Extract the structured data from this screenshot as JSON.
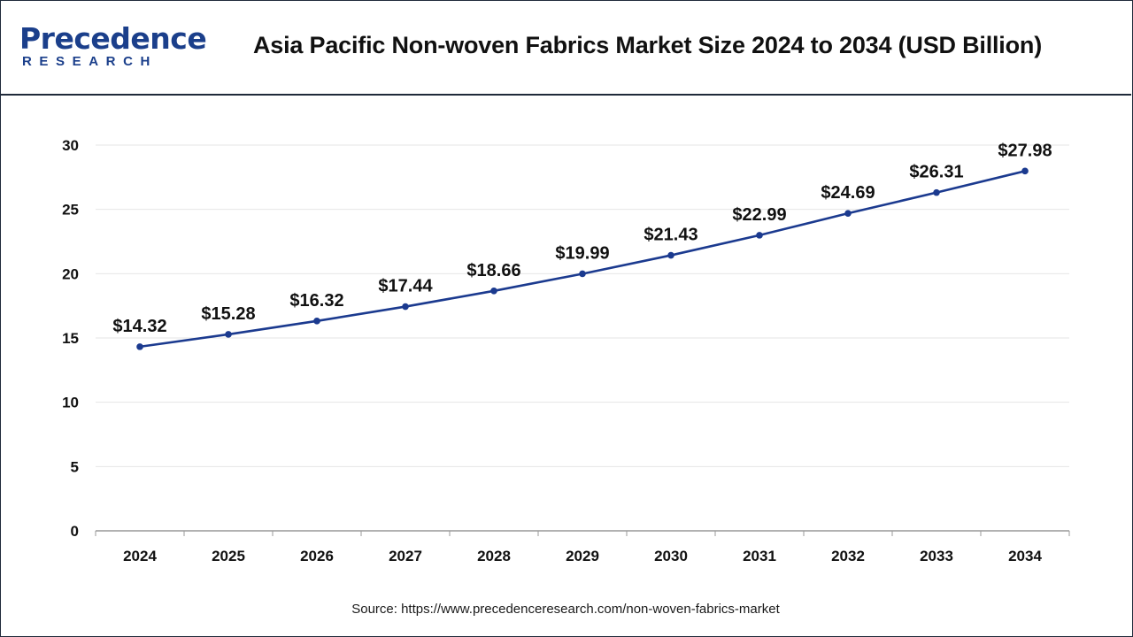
{
  "header": {
    "logo_main": "Precedence",
    "logo_sub": "RESEARCH",
    "title": "Asia Pacific Non-woven Fabrics Market Size 2024 to 2034 (USD Billion)"
  },
  "source": "Source: https://www.precedenceresearch.com/non-woven-fabrics-market",
  "colors": {
    "line": "#1b3a8f",
    "grid": "#e6e6e6",
    "axis": "#999999",
    "brand": "#1b3f8b"
  },
  "chart_data": {
    "type": "line",
    "title": "Asia Pacific Non-woven Fabrics Market Size 2024 to 2034 (USD Billion)",
    "xlabel": "",
    "ylabel": "",
    "categories": [
      "2024",
      "2025",
      "2026",
      "2027",
      "2028",
      "2029",
      "2030",
      "2031",
      "2032",
      "2033",
      "2034"
    ],
    "series": [
      {
        "values": [
          14.32,
          15.28,
          16.32,
          17.44,
          18.66,
          19.99,
          21.43,
          22.99,
          24.69,
          26.31,
          27.98
        ],
        "labels": [
          "$14.32",
          "$15.28",
          "$16.32",
          "$17.44",
          "$18.66",
          "$19.99",
          "$21.43",
          "$22.99",
          "$24.69",
          "$26.31",
          "$27.98"
        ]
      }
    ],
    "ylim": [
      0,
      30
    ],
    "yticks": [
      "0",
      "5",
      "10",
      "15",
      "20",
      "25",
      "30"
    ],
    "grid": true,
    "legend": "none"
  }
}
